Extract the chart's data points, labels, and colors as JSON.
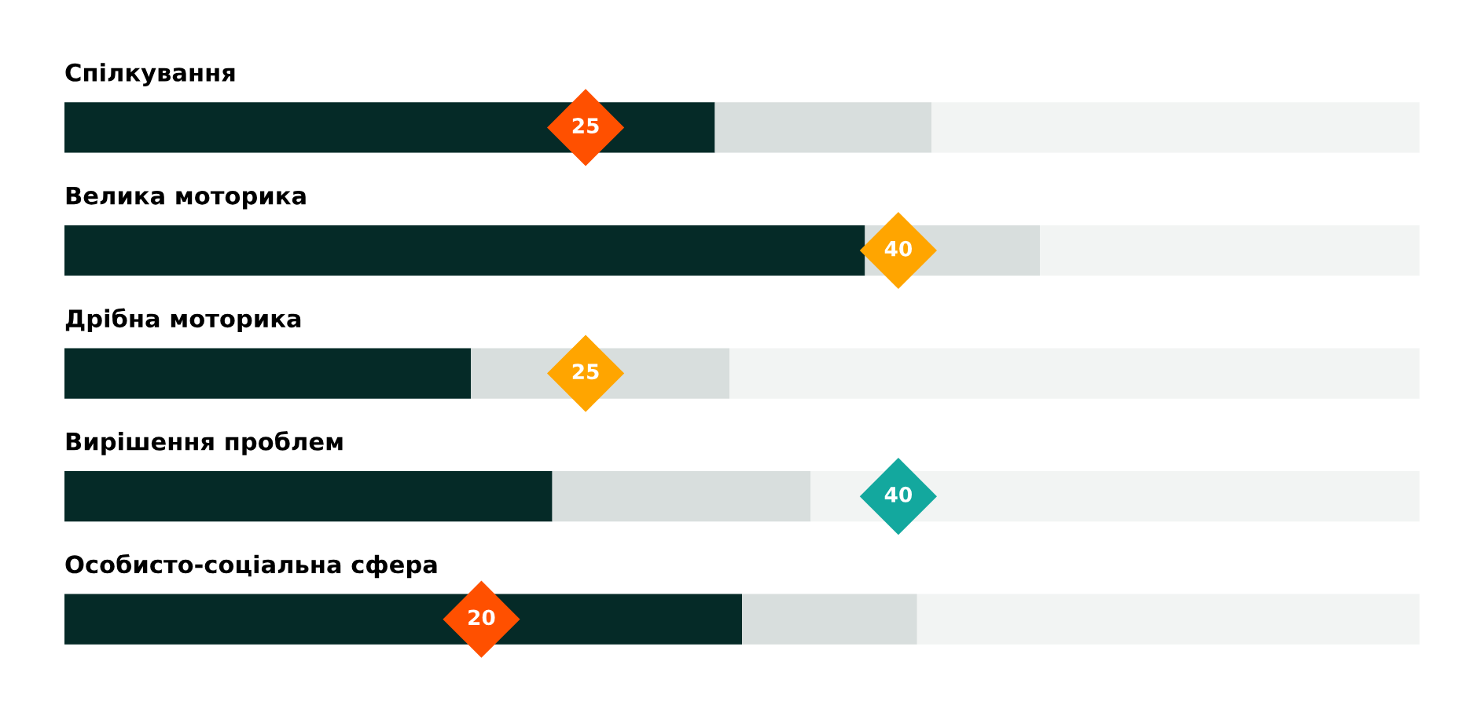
{
  "chart_data": {
    "type": "bar",
    "orientation": "horizontal",
    "stacked": true,
    "categories": [
      "Спілкування",
      "Велика моторика",
      "Дрібна моторика",
      "Вирішення проблем",
      "Особисто-соціальна сфера"
    ],
    "xlim": [
      0,
      65
    ],
    "tick_labels": "y",
    "series": [
      {
        "color": "#052a27",
        "values": [
          31.2,
          38.4,
          19.5,
          23.4,
          32.5
        ]
      },
      {
        "color": "#d8dedd",
        "values": [
          10.4,
          8.4,
          12.4,
          12.4,
          8.4
        ]
      },
      {
        "color": "#f2f4f3",
        "values": [
          23.4,
          18.2,
          33.1,
          29.2,
          24.1
        ]
      },
      {
        "type": "scatter",
        "marker": "diamond",
        "data_labels": true,
        "values": [
          25,
          40,
          25,
          40,
          20
        ],
        "colors": [
          "#ff5000",
          "#ffa500",
          "#ffa500",
          "#13a89e",
          "#ff5000"
        ]
      }
    ]
  }
}
